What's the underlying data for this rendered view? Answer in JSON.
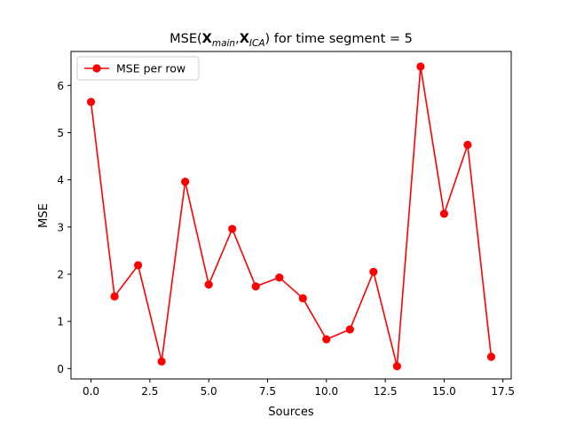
{
  "chart_data": {
    "type": "line",
    "title_prefix": "MSE(",
    "title_v1_main": "X",
    "title_v1_sub": "main",
    "title_comma": ",",
    "title_v2_main": "X",
    "title_v2_sub": "ICA",
    "title_suffix": ") for time segment = 5",
    "xlabel": "Sources",
    "ylabel": "MSE",
    "xlim": [
      -0.85,
      17.85
    ],
    "ylim": [
      -0.22,
      6.72
    ],
    "xticks": [
      0.0,
      2.5,
      5.0,
      7.5,
      10.0,
      12.5,
      15.0,
      17.5
    ],
    "xtick_labels": [
      "0.0",
      "2.5",
      "5.0",
      "7.5",
      "10.0",
      "12.5",
      "15.0",
      "17.5"
    ],
    "yticks": [
      0,
      1,
      2,
      3,
      4,
      5,
      6
    ],
    "ytick_labels": [
      "0",
      "1",
      "2",
      "3",
      "4",
      "5",
      "6"
    ],
    "grid": false,
    "legend_position": "top-left",
    "series": [
      {
        "name": "MSE per row",
        "color": "#ff0000",
        "marker": "circle",
        "x": [
          0,
          1,
          2,
          3,
          4,
          5,
          6,
          7,
          8,
          9,
          10,
          11,
          12,
          13,
          14,
          15,
          16,
          17
        ],
        "y": [
          5.65,
          1.53,
          2.19,
          0.15,
          3.96,
          1.78,
          2.96,
          1.74,
          1.93,
          1.49,
          0.62,
          0.83,
          2.05,
          0.05,
          6.4,
          3.28,
          4.74,
          0.25
        ]
      }
    ]
  }
}
